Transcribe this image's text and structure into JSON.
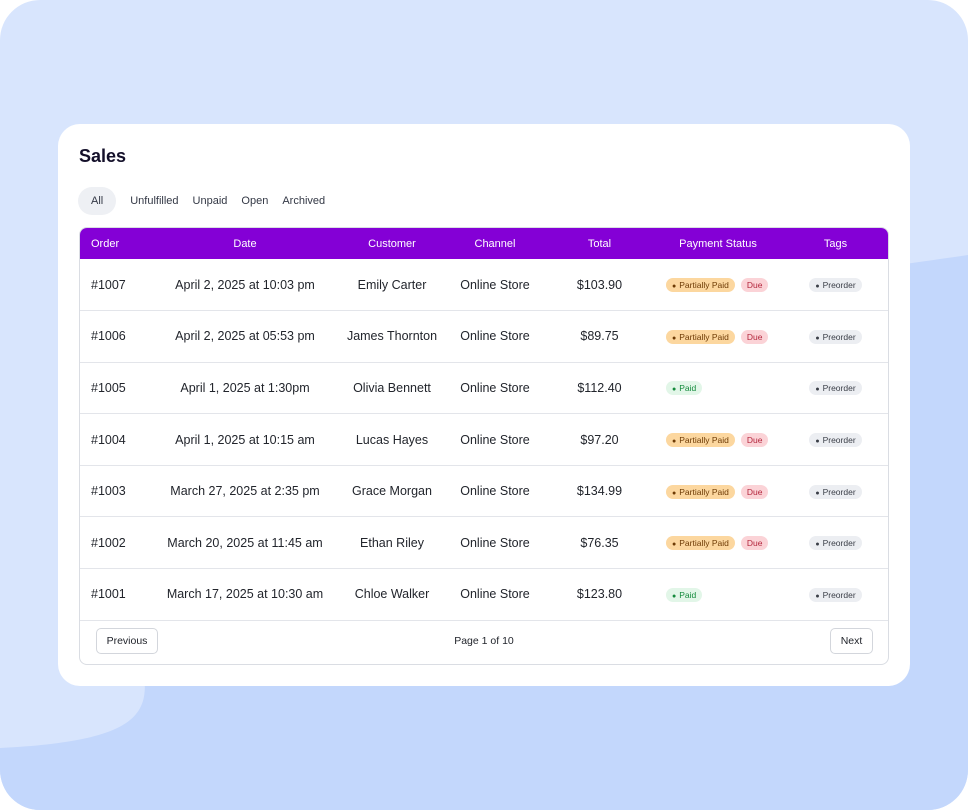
{
  "title": "Sales",
  "tabs": [
    {
      "label": "All",
      "active": true
    },
    {
      "label": "Unfulfilled",
      "active": false
    },
    {
      "label": "Unpaid",
      "active": false
    },
    {
      "label": "Open",
      "active": false
    },
    {
      "label": "Archived",
      "active": false
    }
  ],
  "table": {
    "headers": {
      "order": "Order",
      "date": "Date",
      "customer": "Customer",
      "channel": "Channel",
      "total": "Total",
      "payment_status": "Payment Status",
      "tags": "Tags"
    },
    "rows": [
      {
        "order": "#1007",
        "date": "April 2, 2025 at 10:03 pm",
        "customer": "Emily Carter",
        "channel": "Online Store",
        "total": "$103.90",
        "payment": "Partially Paid",
        "due": "Due",
        "tag": "Preorder"
      },
      {
        "order": "#1006",
        "date": "April 2, 2025 at 05:53 pm",
        "customer": "James Thornton",
        "channel": "Online Store",
        "total": "$89.75",
        "payment": "Partially Paid",
        "due": "Due",
        "tag": "Preorder"
      },
      {
        "order": "#1005",
        "date": "April 1, 2025 at 1:30pm",
        "customer": "Olivia Bennett",
        "channel": "Online Store",
        "total": "$112.40",
        "payment": "Paid",
        "due": null,
        "tag": "Preorder"
      },
      {
        "order": "#1004",
        "date": "April 1, 2025 at 10:15 am",
        "customer": "Lucas Hayes",
        "channel": "Online Store",
        "total": "$97.20",
        "payment": "Partially Paid",
        "due": "Due",
        "tag": "Preorder"
      },
      {
        "order": "#1003",
        "date": "March 27, 2025 at 2:35 pm",
        "customer": "Grace Morgan",
        "channel": "Online Store",
        "total": "$134.99",
        "payment": "Partially Paid",
        "due": "Due",
        "tag": "Preorder"
      },
      {
        "order": "#1002",
        "date": "March 20, 2025 at 11:45 am",
        "customer": "Ethan Riley",
        "channel": "Online Store",
        "total": "$76.35",
        "payment": "Partially Paid",
        "due": "Due",
        "tag": "Preorder"
      },
      {
        "order": "#1001",
        "date": "March 17, 2025 at 10:30 am",
        "customer": "Chloe Walker",
        "channel": "Online Store",
        "total": "$123.80",
        "payment": "Paid",
        "due": null,
        "tag": "Preorder"
      }
    ]
  },
  "pagination": {
    "previous_label": "Previous",
    "next_label": "Next",
    "page_info": "Page 1 of 10"
  },
  "colors": {
    "header_bg": "#8400d6",
    "page_bg": "#d8e5fd",
    "wave": "#c3d7fc",
    "partially_paid_bg": "#fcd79f",
    "due_bg": "#fbd3d7",
    "paid_bg": "#e2f6e8"
  },
  "icons": {
    "status_dot": "●"
  }
}
